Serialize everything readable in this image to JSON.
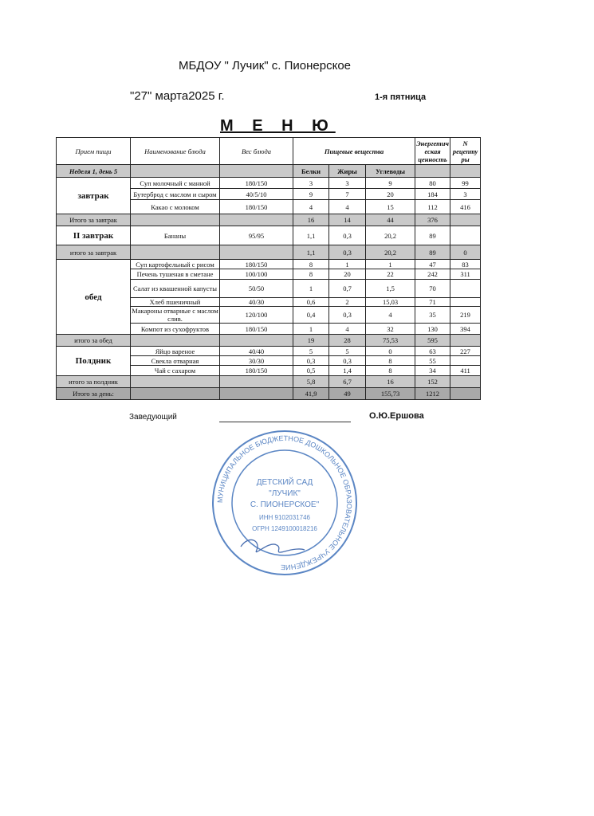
{
  "header": {
    "organization": "МБДОУ \" Лучик\" с. Пионерское",
    "date": "\"27\" марта2025 г.",
    "weekday": "1-я пятница",
    "title": "М Е Н Ю"
  },
  "table": {
    "columns": [
      "Прием пищи",
      "Наименование блюда",
      "Вес блюда",
      "Пищевые вещества",
      "Энергетическая ценность",
      "N рецептуры"
    ],
    "week_label": "Неделя 1, день 5",
    "nutrients": [
      "Белки",
      "Жиры",
      "Углеводы"
    ],
    "sections": [
      {
        "meal": "завтрак",
        "rows": [
          {
            "dish": "Суп молочный с манной",
            "weight": "180/150",
            "protein": "3",
            "fat": "3",
            "carbs": "9",
            "energy": "80",
            "recipe": "99"
          },
          {
            "dish": "Бутерброд с маслом и сыром",
            "weight": "40/5/10",
            "protein": "9",
            "fat": "7",
            "carbs": "20",
            "energy": "184",
            "recipe": "3"
          },
          {
            "dish": "Какао с молоком",
            "weight": "180/150",
            "protein": "4",
            "fat": "4",
            "carbs": "15",
            "energy": "112",
            "recipe": "416"
          }
        ],
        "total": {
          "label": "Итого за завтрак",
          "protein": "16",
          "fat": "14",
          "carbs": "44",
          "energy": "376",
          "recipe": ""
        }
      },
      {
        "meal": "II завтрак",
        "rows": [
          {
            "dish": "Бананы",
            "weight": "95/95",
            "protein": "1,1",
            "fat": "0,3",
            "carbs": "20,2",
            "energy": "89",
            "recipe": ""
          }
        ],
        "total": {
          "label": "итого за завтрак",
          "protein": "1,1",
          "fat": "0,3",
          "carbs": "20,2",
          "energy": "89",
          "recipe": "0"
        }
      },
      {
        "meal": "обед",
        "rows": [
          {
            "dish": "Суп картофельный с рисом",
            "weight": "180/150",
            "protein": "8",
            "fat": "1",
            "carbs": "1",
            "energy": "47",
            "recipe": "83"
          },
          {
            "dish": "Печень тушеная в сметане",
            "weight": "100/100",
            "protein": "8",
            "fat": "20",
            "carbs": "22",
            "energy": "242",
            "recipe": "311"
          },
          {
            "dish": "Салат из квашенной капусты",
            "weight": "50/50",
            "protein": "1",
            "fat": "0,7",
            "carbs": "1,5",
            "energy": "70",
            "recipe": ""
          },
          {
            "dish": "Хлеб пшеничный",
            "weight": "40/30",
            "protein": "0,6",
            "fat": "2",
            "carbs": "15,03",
            "energy": "71",
            "recipe": ""
          },
          {
            "dish": "Макароны отварные с маслом слив.",
            "weight": "120/100",
            "protein": "0,4",
            "fat": "0,3",
            "carbs": "4",
            "energy": "35",
            "recipe": "219"
          },
          {
            "dish": "Компот  из сухофруктов",
            "weight": "180/150",
            "protein": "1",
            "fat": "4",
            "carbs": "32",
            "energy": "130",
            "recipe": "394"
          }
        ],
        "total": {
          "label": "итого за обед",
          "protein": "19",
          "fat": "28",
          "carbs": "75,53",
          "energy": "595",
          "recipe": ""
        }
      },
      {
        "meal": "Полдник",
        "rows": [
          {
            "dish": "Яйцо вареное",
            "weight": "40/40",
            "protein": "5",
            "fat": "5",
            "carbs": "0",
            "energy": "63",
            "recipe": "227"
          },
          {
            "dish": "Свекла отварная",
            "weight": "30/30",
            "protein": "0,3",
            "fat": "0,3",
            "carbs": "8",
            "energy": "55",
            "recipe": ""
          },
          {
            "dish": "Чай с сахаром",
            "weight": "180/150",
            "protein": "0,5",
            "fat": "1,4",
            "carbs": "8",
            "energy": "34",
            "recipe": "411"
          }
        ],
        "total": {
          "label": "итого за полдник",
          "protein": "5,8",
          "fat": "6,7",
          "carbs": "16",
          "energy": "152",
          "recipe": ""
        }
      }
    ],
    "day_total": {
      "label": "Итого за день:",
      "protein": "41,9",
      "fat": "49",
      "carbs": "155,73",
      "energy": "1212",
      "recipe": ""
    }
  },
  "footer": {
    "head_label": "Заведующий",
    "head_name": "О.Ю.Ершова"
  },
  "stamp": {
    "ring_text": "МУНИЦИПАЛЬНОЕ БЮДЖЕТНОЕ ДОШКОЛЬНОЕ ОБРАЗОВАТЕЛЬНОЕ УЧРЕЖДЕНИЕ",
    "center": [
      "ДЕТСКИЙ САД",
      "\"ЛУЧИК\"",
      "С. ПИОНЕРСКОЕ\""
    ],
    "inn": "ИНН 9102031746",
    "ogrn": "ОГРН 1249100018216",
    "color": "#5b86c4"
  }
}
